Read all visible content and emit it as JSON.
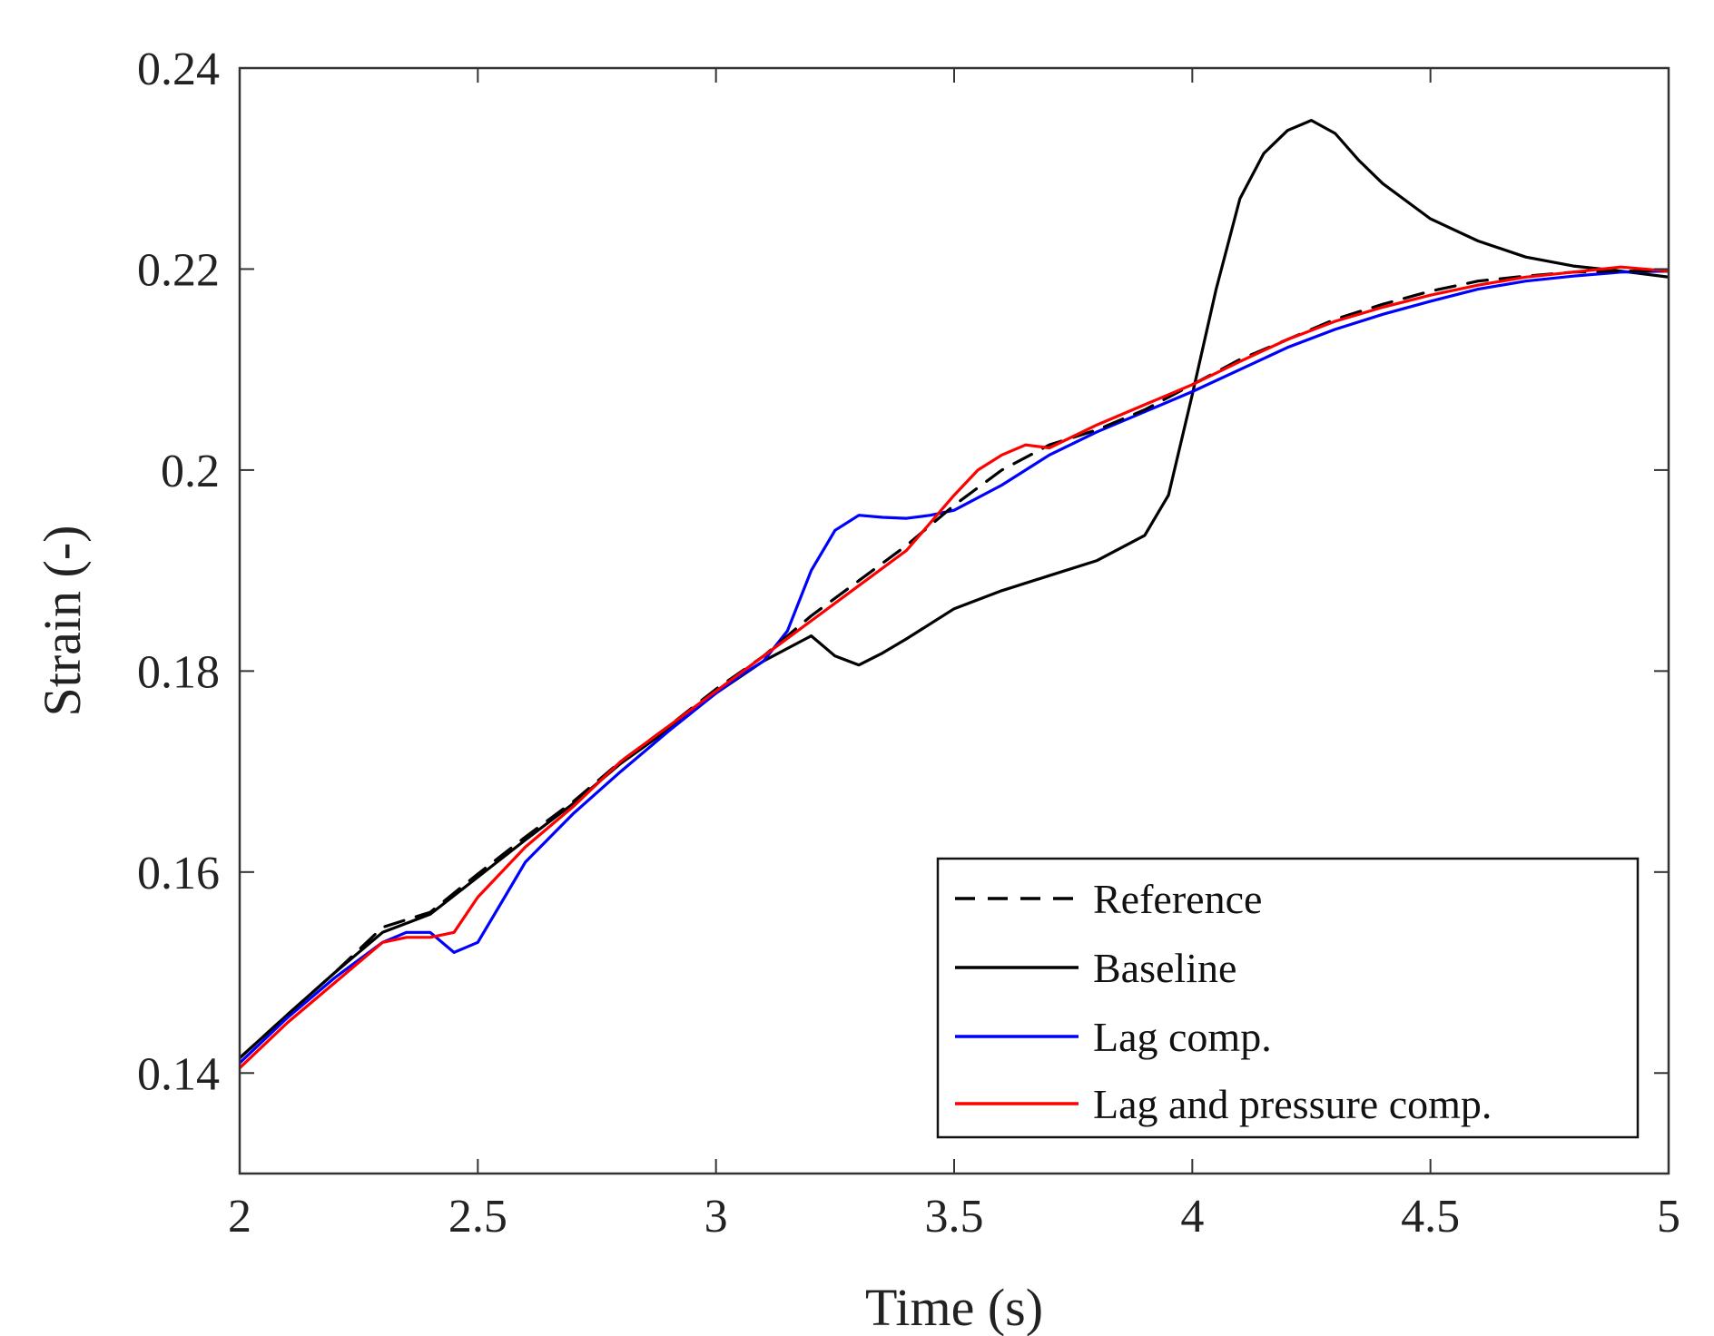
{
  "chart_data": {
    "type": "line",
    "title": "",
    "xlabel": "Time (s)",
    "ylabel": "Strain (-)",
    "xlim": [
      2,
      5
    ],
    "ylim": [
      0.13,
      0.24
    ],
    "xticks": [
      2,
      2.5,
      3,
      3.5,
      4,
      4.5,
      5
    ],
    "xtick_labels": [
      "2",
      "2.5",
      "3",
      "3.5",
      "4",
      "4.5",
      "5"
    ],
    "yticks": [
      0.14,
      0.16,
      0.18,
      0.2,
      0.22,
      0.24
    ],
    "ytick_labels": [
      "0.14",
      "0.16",
      "0.18",
      "0.2",
      "0.22",
      "0.24"
    ],
    "grid": false,
    "legend_position": "bottom-right",
    "series": [
      {
        "name": "Reference",
        "color": "#000000",
        "style": "dashed",
        "x": [
          2.0,
          2.1,
          2.2,
          2.3,
          2.4,
          2.5,
          2.6,
          2.7,
          2.8,
          2.9,
          3.0,
          3.1,
          3.2,
          3.3,
          3.4,
          3.5,
          3.6,
          3.7,
          3.8,
          3.9,
          4.0,
          4.1,
          4.2,
          4.3,
          4.4,
          4.5,
          4.6,
          4.7,
          4.8,
          4.9,
          5.0
        ],
        "y": [
          0.1415,
          0.1458,
          0.15,
          0.1545,
          0.156,
          0.1598,
          0.1635,
          0.167,
          0.171,
          0.1745,
          0.1782,
          0.1815,
          0.1855,
          0.189,
          0.1925,
          0.1965,
          0.2,
          0.2025,
          0.204,
          0.206,
          0.2085,
          0.211,
          0.213,
          0.215,
          0.2165,
          0.2178,
          0.2188,
          0.2193,
          0.2197,
          0.2198,
          0.2198
        ]
      },
      {
        "name": "Baseline",
        "color": "#000000",
        "style": "solid",
        "x": [
          2.0,
          2.1,
          2.2,
          2.3,
          2.4,
          2.5,
          2.6,
          2.7,
          2.8,
          2.9,
          3.0,
          3.1,
          3.2,
          3.25,
          3.3,
          3.35,
          3.4,
          3.5,
          3.6,
          3.7,
          3.8,
          3.9,
          3.95,
          4.0,
          4.05,
          4.1,
          4.15,
          4.2,
          4.25,
          4.3,
          4.35,
          4.4,
          4.5,
          4.6,
          4.7,
          4.8,
          4.9,
          5.0
        ],
        "y": [
          0.1415,
          0.1458,
          0.15,
          0.154,
          0.1558,
          0.1595,
          0.1632,
          0.1668,
          0.1708,
          0.1742,
          0.1778,
          0.181,
          0.1835,
          0.1815,
          0.1806,
          0.1818,
          0.1832,
          0.1862,
          0.188,
          0.1895,
          0.191,
          0.1935,
          0.1975,
          0.2075,
          0.218,
          0.227,
          0.2315,
          0.2338,
          0.2348,
          0.2335,
          0.2308,
          0.2285,
          0.225,
          0.2228,
          0.2212,
          0.2203,
          0.2198,
          0.2192
        ]
      },
      {
        "name": "Lag comp.",
        "color": "#0000ff",
        "style": "solid",
        "x": [
          2.0,
          2.1,
          2.2,
          2.3,
          2.35,
          2.4,
          2.45,
          2.5,
          2.55,
          2.6,
          2.7,
          2.8,
          2.9,
          3.0,
          3.05,
          3.1,
          3.15,
          3.2,
          3.25,
          3.3,
          3.35,
          3.4,
          3.45,
          3.5,
          3.6,
          3.7,
          3.8,
          3.9,
          4.0,
          4.1,
          4.2,
          4.3,
          4.4,
          4.5,
          4.6,
          4.7,
          4.8,
          4.9,
          5.0
        ],
        "y": [
          0.141,
          0.1455,
          0.1495,
          0.153,
          0.154,
          0.154,
          0.152,
          0.153,
          0.157,
          0.161,
          0.1658,
          0.17,
          0.174,
          0.1778,
          0.1795,
          0.181,
          0.184,
          0.19,
          0.194,
          0.1955,
          0.1953,
          0.1952,
          0.1955,
          0.196,
          0.1985,
          0.2015,
          0.2038,
          0.2058,
          0.2078,
          0.21,
          0.2122,
          0.214,
          0.2155,
          0.2168,
          0.218,
          0.2188,
          0.2193,
          0.2197,
          0.2198
        ]
      },
      {
        "name": "Lag and pressure comp.",
        "color": "#ff0000",
        "style": "solid",
        "x": [
          2.0,
          2.1,
          2.2,
          2.3,
          2.35,
          2.4,
          2.45,
          2.5,
          2.6,
          2.7,
          2.8,
          2.9,
          3.0,
          3.1,
          3.2,
          3.3,
          3.4,
          3.5,
          3.55,
          3.6,
          3.65,
          3.7,
          3.8,
          3.9,
          4.0,
          4.1,
          4.2,
          4.3,
          4.4,
          4.5,
          4.6,
          4.7,
          4.8,
          4.9,
          5.0
        ],
        "y": [
          0.1405,
          0.145,
          0.149,
          0.153,
          0.1535,
          0.1535,
          0.154,
          0.1575,
          0.1625,
          0.1665,
          0.171,
          0.1745,
          0.178,
          0.1815,
          0.185,
          0.1885,
          0.192,
          0.1975,
          0.2,
          0.2015,
          0.2025,
          0.2022,
          0.2045,
          0.2065,
          0.2085,
          0.2108,
          0.213,
          0.2148,
          0.2162,
          0.2174,
          0.2184,
          0.2192,
          0.2197,
          0.2202,
          0.2198
        ]
      }
    ]
  }
}
